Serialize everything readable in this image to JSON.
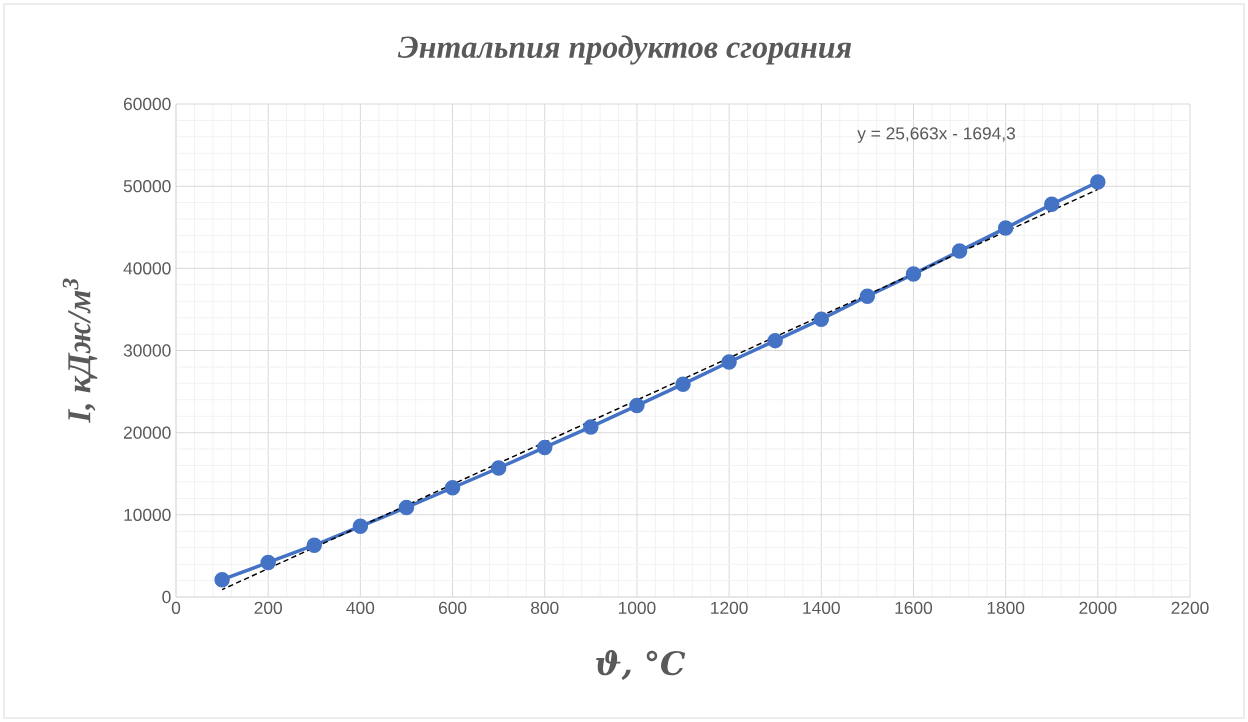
{
  "chart_data": {
    "type": "line",
    "title": "Энтальпия продуктов сгорания",
    "xlabel": "ϑ, °C",
    "ylabel": "I, кДж/м$^{3}$",
    "annotations": [
      "y = 25,663x - 1694,3"
    ],
    "x": [
      100,
      200,
      300,
      400,
      500,
      600,
      700,
      800,
      900,
      1000,
      1100,
      1200,
      1300,
      1400,
      1500,
      1600,
      1700,
      1800,
      1900,
      2000
    ],
    "series": [
      {
        "color": "#4472c4",
        "marker": "circle",
        "line_style": "solid",
        "values": [
          2100,
          4200,
          6300,
          8600,
          10900,
          13300,
          15700,
          18200,
          20700,
          23300,
          25900,
          28600,
          31200,
          33800,
          36600,
          39300,
          42100,
          44900,
          47800,
          50500
        ]
      },
      {
        "type": "line",
        "color": "#000000",
        "marker": "none",
        "line_style": "dashed",
        "x": [
          100,
          2000
        ],
        "values": [
          900,
          49600
        ]
      }
    ],
    "xlim": [
      0,
      2200
    ],
    "ylim": [
      0,
      60000
    ],
    "xticks": [
      0,
      200,
      400,
      600,
      800,
      1000,
      1200,
      1400,
      1600,
      1800,
      2000,
      2200
    ],
    "yticks": [
      0,
      10000,
      20000,
      30000,
      40000,
      50000,
      60000
    ],
    "grid": true
  }
}
